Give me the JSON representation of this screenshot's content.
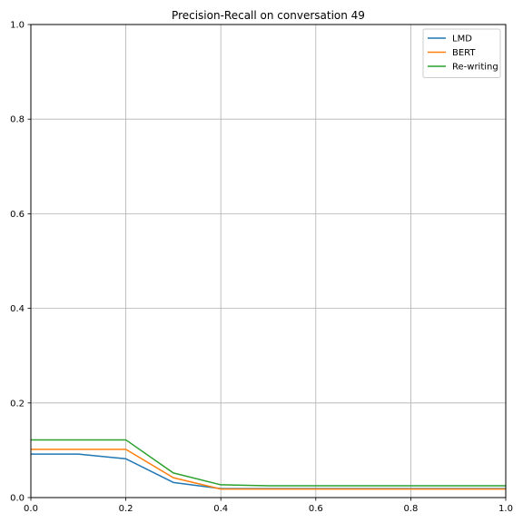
{
  "chart_data": {
    "type": "line",
    "title": "Precision-Recall on conversation 49",
    "xlabel": "",
    "ylabel": "",
    "xlim": [
      0.0,
      1.0
    ],
    "ylim": [
      0.0,
      1.0
    ],
    "grid": true,
    "legend_position": "top-right",
    "x_ticks": [
      0.0,
      0.2,
      0.4,
      0.6,
      0.8,
      1.0
    ],
    "x_tick_labels": [
      "0.0",
      "0.2",
      "0.4",
      "0.6",
      "0.8",
      "1.0"
    ],
    "y_ticks": [
      0.0,
      0.2,
      0.4,
      0.6,
      0.8,
      1.0
    ],
    "y_tick_labels": [
      "0.0",
      "0.2",
      "0.4",
      "0.6",
      "0.8",
      "1.0"
    ],
    "x": [
      0.0,
      0.1,
      0.2,
      0.3,
      0.4,
      0.5,
      0.6,
      0.7,
      0.8,
      0.9,
      1.0
    ],
    "series": [
      {
        "name": "LMD",
        "color": "#1f77b4",
        "values": [
          0.092,
          0.092,
          0.082,
          0.032,
          0.019,
          0.019,
          0.019,
          0.019,
          0.019,
          0.019,
          0.019
        ]
      },
      {
        "name": "BERT",
        "color": "#ff7f0e",
        "values": [
          0.102,
          0.102,
          0.102,
          0.042,
          0.018,
          0.018,
          0.018,
          0.018,
          0.018,
          0.018,
          0.018
        ]
      },
      {
        "name": "Re-writing",
        "color": "#2ca02c",
        "values": [
          0.122,
          0.122,
          0.122,
          0.052,
          0.027,
          0.025,
          0.025,
          0.025,
          0.025,
          0.025,
          0.025
        ]
      }
    ]
  }
}
